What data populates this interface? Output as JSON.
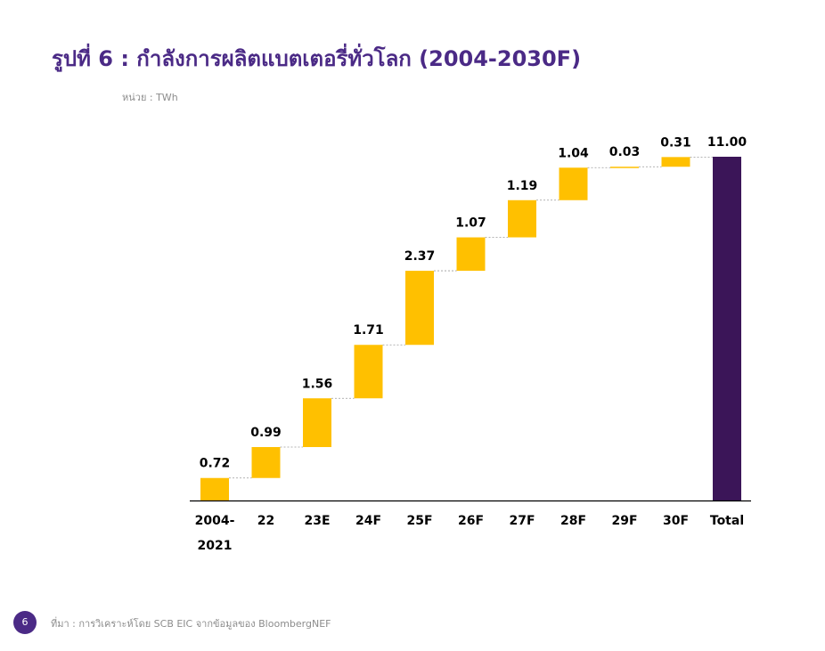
{
  "title": "รูปที่ 6 : กำลังการผลิตแบตเตอรี่ทั่วโลก (2004-2030F)",
  "unit_label": "หน่วย : TWh",
  "page_number": "6",
  "source": "ที่มา : การวิเคราะห์โดย SCB EIC จากข้อมูลของ BloombergNEF",
  "colors": {
    "increment": "#FFC000",
    "total": "#3B1558",
    "title": "#4b2a86"
  },
  "chart_data": {
    "type": "bar",
    "subtype": "waterfall",
    "categories": [
      [
        "2004-",
        "2021"
      ],
      [
        "22"
      ],
      [
        "23E"
      ],
      [
        "24F"
      ],
      [
        "25F"
      ],
      [
        "26F"
      ],
      [
        "27F"
      ],
      [
        "28F"
      ],
      [
        "29F"
      ],
      [
        "30F"
      ],
      [
        "Total"
      ]
    ],
    "values": [
      0.72,
      0.99,
      1.56,
      1.71,
      2.37,
      1.07,
      1.19,
      1.04,
      0.03,
      0.31,
      11.0
    ],
    "labels": [
      "0.72",
      "0.99",
      "1.56",
      "1.71",
      "2.37",
      "1.07",
      "1.19",
      "1.04",
      "0.03",
      "0.31",
      "11.00"
    ],
    "total_index": 10,
    "ylim": [
      0,
      11
    ],
    "grid": false,
    "legend": "none"
  }
}
